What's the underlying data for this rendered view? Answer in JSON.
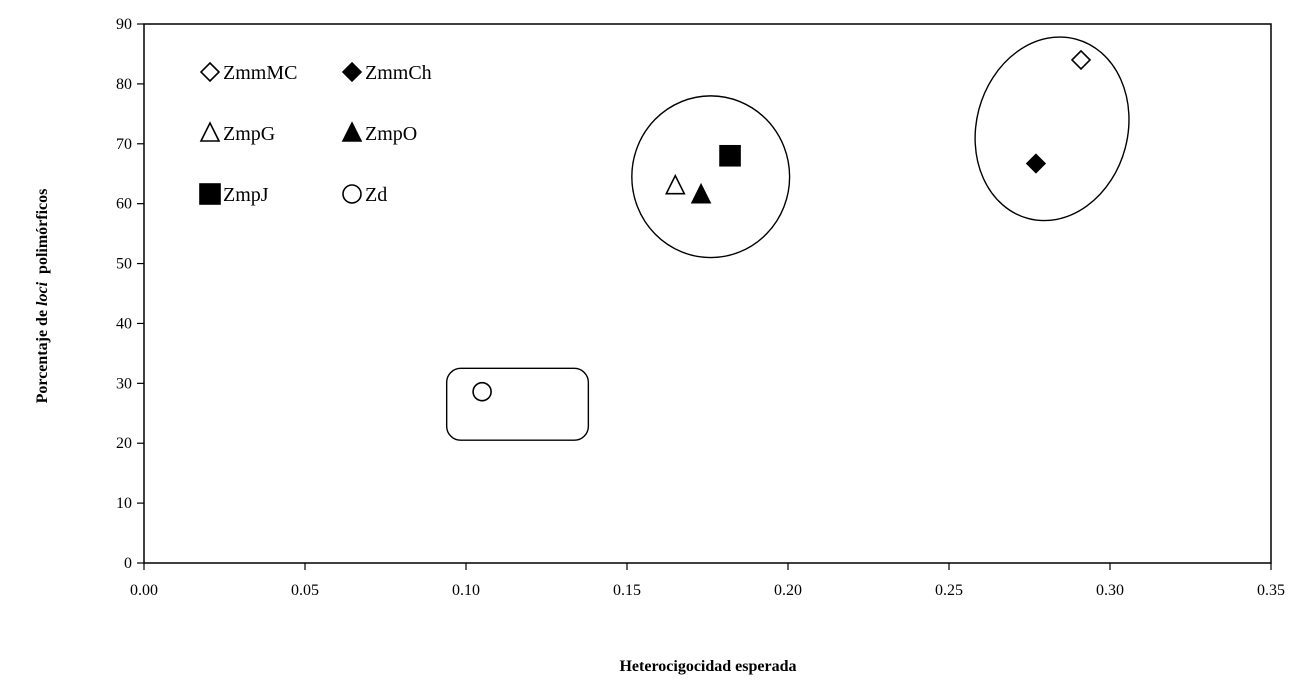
{
  "chart_data": {
    "type": "scatter",
    "title": "",
    "xlabel": "Heterocigocidad esperada",
    "ylabel_parts": [
      "Porcentaje de ",
      "loci",
      "  polimórficos"
    ],
    "xlim": [
      0,
      0.35
    ],
    "ylim": [
      0,
      90
    ],
    "xticks": [
      "0.00",
      "0.05",
      "0.10",
      "0.15",
      "0.20",
      "0.25",
      "0.30",
      "0.35"
    ],
    "yticks": [
      "0",
      "10",
      "20",
      "30",
      "40",
      "50",
      "60",
      "70",
      "80",
      "90"
    ],
    "grid": false,
    "legend_position": "top-left",
    "series": [
      {
        "name": "ZmmMC",
        "marker": "diamond-open",
        "x": [
          0.291
        ],
        "y": [
          84
        ]
      },
      {
        "name": "ZmmCh",
        "marker": "diamond-filled",
        "x": [
          0.277
        ],
        "y": [
          66.7
        ]
      },
      {
        "name": "ZmpG",
        "marker": "triangle-open",
        "x": [
          0.165
        ],
        "y": [
          63
        ]
      },
      {
        "name": "ZmpO",
        "marker": "triangle-filled",
        "x": [
          0.173
        ],
        "y": [
          61.5
        ]
      },
      {
        "name": "ZmpJ",
        "marker": "square-filled",
        "x": [
          0.182
        ],
        "y": [
          68
        ]
      },
      {
        "name": "Zd",
        "marker": "circle-open",
        "x": [
          0.105
        ],
        "y": [
          28.6
        ]
      }
    ],
    "annotations": [
      {
        "shape": "rounded-rect",
        "x0": 0.094,
        "x1": 0.138,
        "y0": 20.5,
        "y1": 32.5
      },
      {
        "shape": "circle",
        "cx": 0.176,
        "cy": 64.5,
        "rx": 0.0245,
        "ry": 13.5
      },
      {
        "shape": "ellipse",
        "cx": 0.282,
        "cy": 72.5,
        "rx": 0.0235,
        "ry": 15.5,
        "rotate": 15
      }
    ]
  }
}
